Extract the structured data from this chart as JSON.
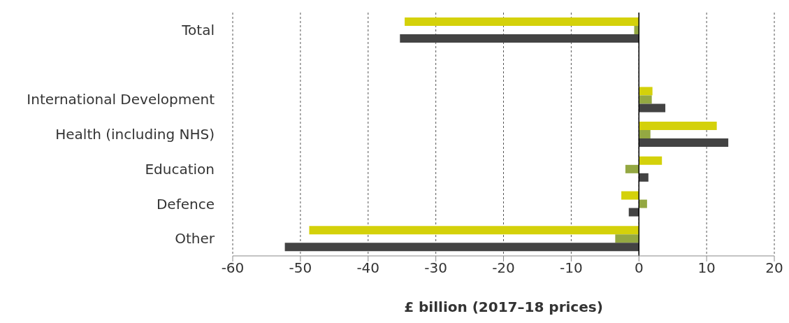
{
  "chart_data": {
    "type": "bar",
    "orientation": "horizontal",
    "xlabel": "£ billion (2017–18 prices)",
    "categories": [
      "Total",
      null,
      "International Development",
      "Health (including NHS)",
      "Education",
      "Defence ",
      "Other"
    ],
    "series": [
      {
        "color": "#d4d10a",
        "values": [
          -34.6,
          null,
          2.0,
          11.5,
          3.4,
          -2.6,
          -48.7
        ]
      },
      {
        "color": "#94a842",
        "values": [
          -0.7,
          null,
          1.9,
          1.7,
          -2.0,
          1.2,
          -3.5
        ]
      },
      {
        "color": "#434343",
        "values": [
          -35.3,
          null,
          3.9,
          13.2,
          1.4,
          -1.5,
          -52.3
        ]
      }
    ],
    "xlim": [
      -60,
      20
    ],
    "xticks": [
      -60,
      -50,
      -40,
      -30,
      -20,
      -10,
      0,
      10,
      20
    ],
    "grid": "x",
    "legend": false
  }
}
